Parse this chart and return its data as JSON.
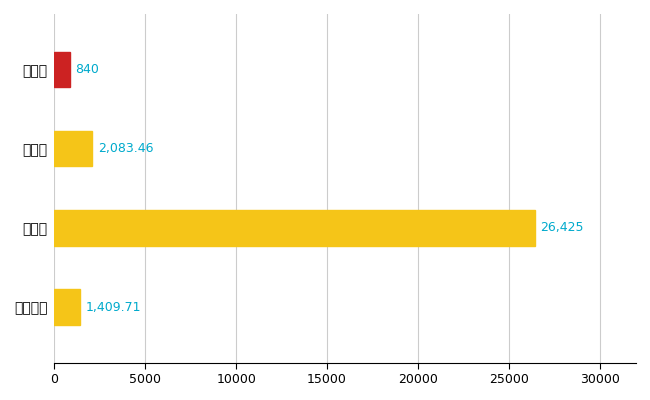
{
  "categories": [
    "綾部市",
    "県平均",
    "県最大",
    "全国平均"
  ],
  "values": [
    840,
    2083.46,
    26425,
    1409.71
  ],
  "labels": [
    "840",
    "2,083.46",
    "26,425",
    "1,409.71"
  ],
  "bar_colors": [
    "#cc2222",
    "#f5c518",
    "#f5c518",
    "#f5c518"
  ],
  "background_color": "#ffffff",
  "xlim": [
    0,
    32000
  ],
  "xticks": [
    0,
    5000,
    10000,
    15000,
    20000,
    25000,
    30000
  ],
  "xtick_labels": [
    "0",
    "5000",
    "10000",
    "15000",
    "20000",
    "25000",
    "30000"
  ],
  "grid_color": "#cccccc",
  "label_color": "#00aacc",
  "label_fontsize": 9,
  "tick_fontsize": 9,
  "category_fontsize": 10,
  "bar_height": 0.45,
  "figsize": [
    6.5,
    4.0
  ],
  "dpi": 100
}
